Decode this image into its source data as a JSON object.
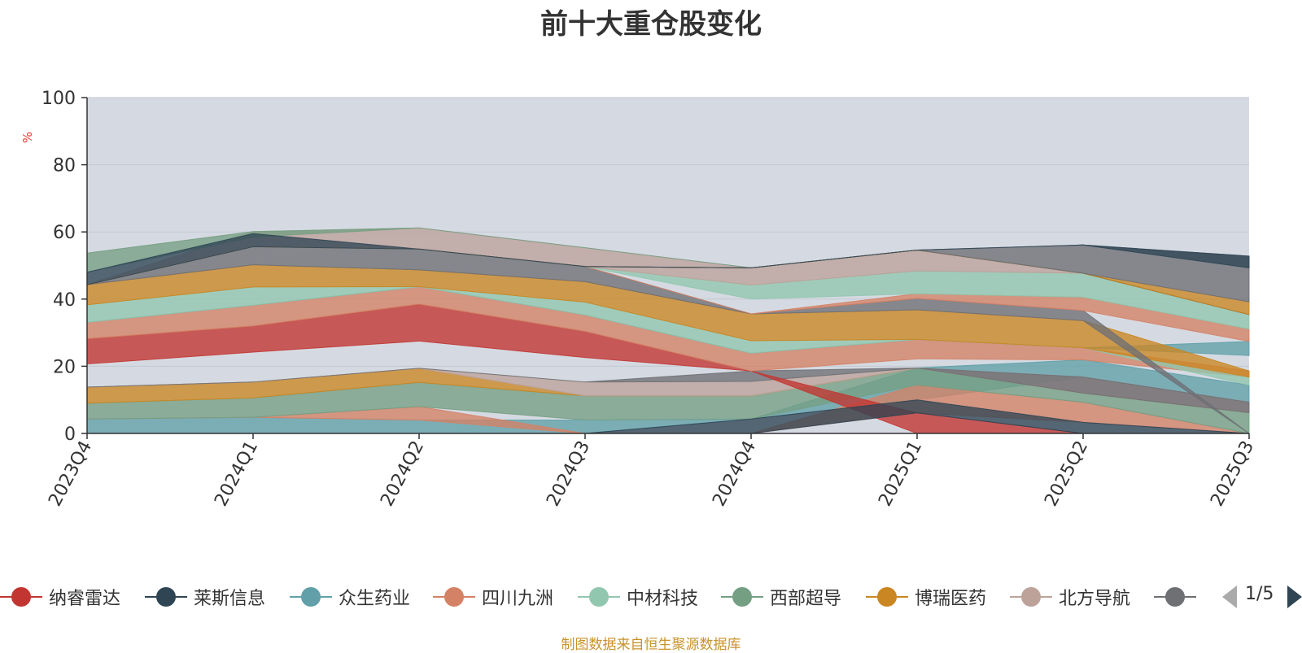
{
  "chart_data": {
    "type": "area",
    "title": "前十大重仓股变化",
    "ylabel": "%",
    "ylim": [
      0,
      100
    ],
    "yticks": [
      0,
      20,
      40,
      60,
      80,
      100
    ],
    "grid": true,
    "categories": [
      "2023Q4",
      "2024Q1",
      "2024Q2",
      "2024Q3",
      "2024Q4",
      "2025Q1",
      "2025Q2",
      "2025Q3"
    ],
    "legend_position": "bottom",
    "source": "制图数据来自恒生聚源数据库",
    "background_color": "#d5dae2",
    "page": "1/5",
    "series_legend": [
      {
        "name": "纳睿雷达",
        "color": "#c23531"
      },
      {
        "name": "莱斯信息",
        "color": "#2f4554"
      },
      {
        "name": "众生药业",
        "color": "#61a0a8"
      },
      {
        "name": "四川九洲",
        "color": "#d48265"
      },
      {
        "name": "中材科技",
        "color": "#91c7ae"
      },
      {
        "name": "西部超导",
        "color": "#749f83"
      },
      {
        "name": "博瑞医药",
        "color": "#ca8622"
      },
      {
        "name": "北方导航",
        "color": "#bda29a"
      },
      {
        "name": "",
        "color": "#6e7074"
      }
    ],
    "bands": [
      {
        "color": "#61a0a8",
        "values": [
          [
            0,
            4.3
          ],
          [
            0,
            4.8
          ],
          [
            0,
            4.0
          ],
          [
            0,
            4.0
          ],
          [
            4.3,
            4.3
          ],
          [
            10.0,
            19.5
          ],
          [
            16.8,
            21.9
          ],
          [
            9.3,
            14.4
          ]
        ]
      },
      {
        "color": "#d48265",
        "values": [
          [
            4.3,
            4.3
          ],
          [
            4.8,
            4.8
          ],
          [
            4.0,
            8.0
          ],
          [
            0,
            0
          ],
          [
            0,
            0
          ],
          [
            6.1,
            14.4
          ],
          [
            3.3,
            9.3
          ],
          [
            0,
            0
          ]
        ]
      },
      {
        "color": "#749f83",
        "values": [
          [
            4.3,
            9.0
          ],
          [
            4.8,
            10.6
          ],
          [
            8.0,
            15.2
          ],
          [
            4.0,
            11.2
          ],
          [
            4.3,
            11.2
          ],
          [
            14.4,
            19.5
          ],
          [
            9.3,
            12.0
          ],
          [
            0,
            6.2
          ]
        ]
      },
      {
        "color": "#ca8622",
        "values": [
          [
            9.0,
            13.8
          ],
          [
            10.6,
            15.3
          ],
          [
            15.2,
            19.4
          ],
          [
            11.2,
            11.2
          ],
          [
            11.2,
            11.2
          ],
          [
            19.5,
            19.5
          ],
          [
            12.0,
            12.0
          ],
          [
            6.2,
            6.2
          ]
        ]
      },
      {
        "color": "#bda29a",
        "values": [
          [
            13.8,
            13.8
          ],
          [
            15.3,
            15.3
          ],
          [
            19.4,
            19.4
          ],
          [
            11.2,
            15.3
          ],
          [
            11.2,
            15.5
          ],
          [
            19.5,
            19.5
          ],
          [
            12.0,
            16.8
          ],
          [
            6.2,
            9.3
          ]
        ]
      },
      {
        "color": "#6e7074",
        "values": [
          [
            13.8,
            13.8
          ],
          [
            15.3,
            15.3
          ],
          [
            19.4,
            19.4
          ],
          [
            15.3,
            15.3
          ],
          [
            15.5,
            18.6
          ],
          [
            19.5,
            19.5
          ],
          [
            12.0,
            16.8
          ],
          [
            6.2,
            9.3
          ]
        ]
      },
      {
        "color": "#c23531",
        "values": [
          [
            20.7,
            28.2
          ],
          [
            24.2,
            32.0
          ],
          [
            27.5,
            38.5
          ],
          [
            22.6,
            30.4
          ],
          [
            18.6,
            18.6
          ],
          [
            0,
            6.1
          ],
          [
            0,
            0
          ],
          [
            0,
            0
          ]
        ]
      },
      {
        "color": "#2f4554",
        "values": [
          [
            0,
            0
          ],
          [
            0,
            0
          ],
          [
            0,
            0
          ],
          [
            0,
            0
          ],
          [
            0,
            4.3
          ],
          [
            6.1,
            10.0
          ],
          [
            0,
            3.3
          ],
          [
            0,
            0
          ]
        ]
      },
      {
        "color": "#d48265",
        "values": [
          [
            28.2,
            33.1
          ],
          [
            32.0,
            38.2
          ],
          [
            38.5,
            43.7
          ],
          [
            30.4,
            35.3
          ],
          [
            18.6,
            23.9
          ],
          [
            22.2,
            28.0
          ],
          [
            21.9,
            25.5
          ],
          [
            16.8,
            18.6
          ]
        ]
      },
      {
        "color": "#61a0a8",
        "values": [
          [
            33.1,
            33.1
          ],
          [
            38.2,
            38.2
          ],
          [
            43.7,
            43.7
          ],
          [
            35.3,
            35.3
          ],
          [
            23.9,
            23.9
          ],
          [
            28.0,
            28.0
          ],
          [
            25.5,
            25.5
          ],
          [
            23.2,
            27.4
          ]
        ]
      },
      {
        "color": "#91c7ae",
        "values": [
          [
            33.1,
            38.3
          ],
          [
            38.2,
            43.6
          ],
          [
            43.7,
            43.7
          ],
          [
            35.3,
            39.1
          ],
          [
            23.9,
            27.6
          ],
          [
            28.0,
            28.0
          ],
          [
            25.5,
            25.5
          ],
          [
            14.4,
            16.8
          ]
        ]
      },
      {
        "color": "#ca8622",
        "values": [
          [
            38.3,
            44.3
          ],
          [
            43.6,
            50.2
          ],
          [
            43.7,
            48.7
          ],
          [
            39.1,
            45.2
          ],
          [
            27.6,
            35.6
          ],
          [
            28.0,
            36.8
          ],
          [
            25.5,
            33.6
          ],
          [
            16.8,
            18.6
          ]
        ]
      },
      {
        "color": "#6e7074",
        "values": [
          [
            44.3,
            44.3
          ],
          [
            50.2,
            55.6
          ],
          [
            48.7,
            54.9
          ],
          [
            45.2,
            49.7
          ],
          [
            35.6,
            35.6
          ],
          [
            36.8,
            40.2
          ],
          [
            33.6,
            36.6
          ],
          [
            0,
            0
          ]
        ]
      },
      {
        "color": "#d48265",
        "values": [
          [
            44.3,
            44.3
          ],
          [
            55.6,
            55.6
          ],
          [
            54.9,
            54.9
          ],
          [
            49.7,
            49.7
          ],
          [
            35.6,
            35.6
          ],
          [
            40.2,
            41.6
          ],
          [
            36.6,
            40.6
          ],
          [
            27.4,
            31.1
          ]
        ]
      },
      {
        "color": "#91c7ae",
        "values": [
          [
            44.3,
            44.3
          ],
          [
            55.6,
            55.6
          ],
          [
            54.9,
            54.9
          ],
          [
            49.7,
            49.7
          ],
          [
            40.0,
            44.2
          ],
          [
            41.6,
            48.4
          ],
          [
            40.6,
            47.7
          ],
          [
            31.1,
            35.4
          ]
        ]
      },
      {
        "color": "#bda29a",
        "values": [
          [
            44.3,
            44.3
          ],
          [
            55.6,
            60.1
          ],
          [
            54.9,
            61.2
          ],
          [
            49.7,
            55.3
          ],
          [
            44.2,
            49.3
          ],
          [
            48.4,
            54.6
          ],
          [
            47.7,
            47.7
          ],
          [
            35.4,
            35.4
          ]
        ]
      },
      {
        "color": "#749f83",
        "values": [
          [
            48.0,
            53.7
          ],
          [
            58.5,
            60.1
          ],
          [
            61.2,
            61.2
          ],
          [
            55.3,
            55.3
          ],
          [
            49.3,
            49.3
          ],
          [
            54.6,
            54.6
          ],
          [
            47.7,
            47.7
          ],
          [
            35.4,
            35.4
          ]
        ]
      },
      {
        "color": "#2f4554",
        "values": [
          [
            44.3,
            48.0
          ],
          [
            55.6,
            59.5
          ],
          [
            54.9,
            54.9
          ],
          [
            49.7,
            49.7
          ],
          [
            49.3,
            49.3
          ],
          [
            54.6,
            54.6
          ],
          [
            47.7,
            47.7
          ],
          [
            35.4,
            35.4
          ]
        ]
      },
      {
        "color": "#ca8622",
        "values": [
          [
            44.3,
            44.3
          ],
          [
            55.6,
            55.6
          ],
          [
            54.9,
            54.9
          ],
          [
            49.7,
            49.7
          ],
          [
            49.3,
            49.3
          ],
          [
            54.6,
            54.6
          ],
          [
            47.7,
            47.7
          ],
          [
            35.4,
            39.2
          ]
        ]
      },
      {
        "color": "#6e7074",
        "values": [
          [
            44.3,
            44.3
          ],
          [
            55.6,
            55.6
          ],
          [
            54.9,
            54.9
          ],
          [
            49.7,
            49.7
          ],
          [
            49.3,
            49.3
          ],
          [
            54.6,
            54.6
          ],
          [
            47.7,
            56.1
          ],
          [
            39.2,
            52.8
          ]
        ]
      },
      {
        "color": "#2f4554",
        "values": [
          [
            44.3,
            44.3
          ],
          [
            55.6,
            55.6
          ],
          [
            54.9,
            54.9
          ],
          [
            49.7,
            49.7
          ],
          [
            49.3,
            49.3
          ],
          [
            54.6,
            54.6
          ],
          [
            56.1,
            56.1
          ],
          [
            49.3,
            52.8
          ]
        ]
      }
    ]
  }
}
